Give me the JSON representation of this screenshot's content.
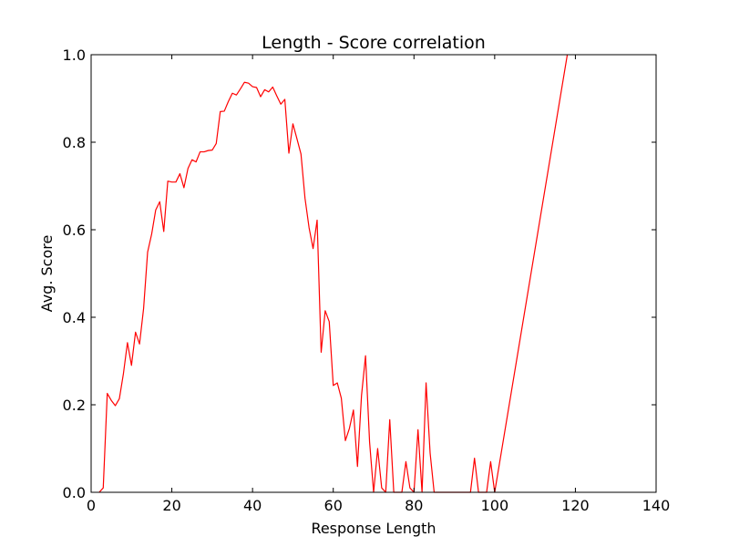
{
  "chart_data": {
    "type": "line",
    "title": "Length - Score correlation",
    "xlabel": "Response Length",
    "ylabel": "Avg. Score",
    "xlim": [
      0,
      140
    ],
    "ylim": [
      0.0,
      1.0
    ],
    "xticks": [
      "0",
      "20",
      "40",
      "60",
      "80",
      "100",
      "120",
      "140"
    ],
    "yticks": [
      "0.0",
      "0.2",
      "0.4",
      "0.6",
      "0.8",
      "1.0"
    ],
    "grid": false,
    "line_color": "#ff0000",
    "series": [
      {
        "x": [
          2,
          3,
          4,
          5,
          6,
          7,
          8,
          9,
          10,
          11,
          12,
          13,
          14,
          15,
          16,
          17,
          18,
          19,
          20,
          21,
          22,
          23,
          24,
          25,
          26,
          27,
          28,
          29,
          30,
          31,
          32,
          33,
          34,
          35,
          36,
          37,
          38,
          39,
          40,
          41,
          42,
          43,
          44,
          45,
          46,
          47,
          48,
          49,
          50,
          51,
          52,
          53,
          54,
          55,
          56,
          57,
          58,
          59,
          60,
          61,
          62,
          63,
          64,
          65,
          66,
          67,
          68,
          69,
          70,
          71,
          72,
          73,
          74,
          75,
          76,
          77,
          78,
          79,
          80,
          81,
          82,
          83,
          84,
          85,
          86,
          87,
          88,
          89,
          90,
          91,
          92,
          93,
          94,
          95,
          96,
          97,
          98,
          99,
          100,
          118
        ],
        "y": [
          0.0,
          0.01,
          0.226,
          0.21,
          0.198,
          0.214,
          0.271,
          0.342,
          0.29,
          0.366,
          0.339,
          0.42,
          0.549,
          0.59,
          0.645,
          0.664,
          0.596,
          0.711,
          0.709,
          0.709,
          0.728,
          0.696,
          0.74,
          0.76,
          0.755,
          0.778,
          0.778,
          0.781,
          0.782,
          0.797,
          0.87,
          0.871,
          0.893,
          0.912,
          0.908,
          0.922,
          0.937,
          0.935,
          0.927,
          0.925,
          0.904,
          0.92,
          0.915,
          0.926,
          0.906,
          0.887,
          0.898,
          0.775,
          0.842,
          0.808,
          0.773,
          0.672,
          0.605,
          0.557,
          0.622,
          0.32,
          0.415,
          0.39,
          0.244,
          0.25,
          0.215,
          0.118,
          0.146,
          0.188,
          0.059,
          0.221,
          0.312,
          0.115,
          0.0,
          0.1,
          0.01,
          0.0,
          0.166,
          0.0,
          0.0,
          0.0,
          0.07,
          0.01,
          0.0,
          0.143,
          0.0,
          0.25,
          0.09,
          0.0,
          0.0,
          0.0,
          0.0,
          0.0,
          0.0,
          0.0,
          0.0,
          0.0,
          0.0,
          0.078,
          0.0,
          0.0,
          0.0,
          0.07,
          0.0,
          1.0
        ]
      }
    ]
  }
}
